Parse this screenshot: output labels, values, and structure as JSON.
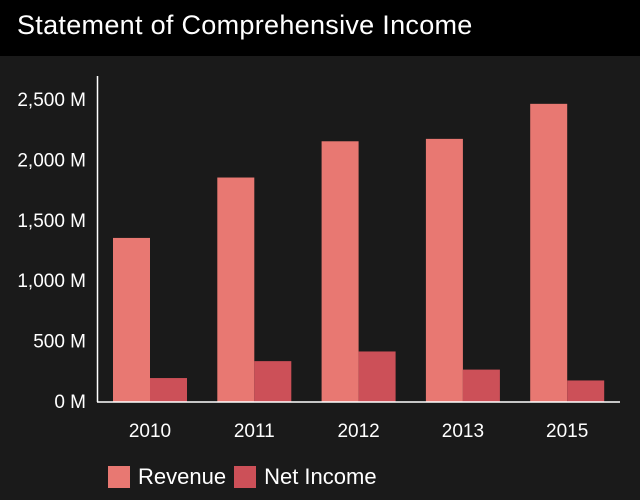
{
  "title": "Statement of Comprehensive Income",
  "colors": {
    "background": "#1a1a1a",
    "title_bar": "#000000",
    "revenue": "#e87872",
    "net_income": "#cc5058",
    "text": "#ffffff"
  },
  "chart_data": {
    "type": "bar",
    "title": "Statement of Comprehensive Income",
    "categories": [
      "2010",
      "2011",
      "2012",
      "2013",
      "2015"
    ],
    "series": [
      {
        "name": "Revenue",
        "values": [
          1350,
          1850,
          2150,
          2170,
          2460
        ]
      },
      {
        "name": "Net Income",
        "values": [
          190,
          330,
          410,
          260,
          170
        ]
      }
    ],
    "y_ticks": [
      {
        "value": 0,
        "label": "0 M"
      },
      {
        "value": 500,
        "label": "500 M"
      },
      {
        "value": 1000,
        "label": "1,000 M"
      },
      {
        "value": 1500,
        "label": "1,500 M"
      },
      {
        "value": 2000,
        "label": "2,000 M"
      },
      {
        "value": 2500,
        "label": "2,500 M"
      }
    ],
    "ylim": [
      0,
      2700
    ],
    "xlabel": "",
    "ylabel": "",
    "grid": false,
    "legend": "bottom-left"
  }
}
